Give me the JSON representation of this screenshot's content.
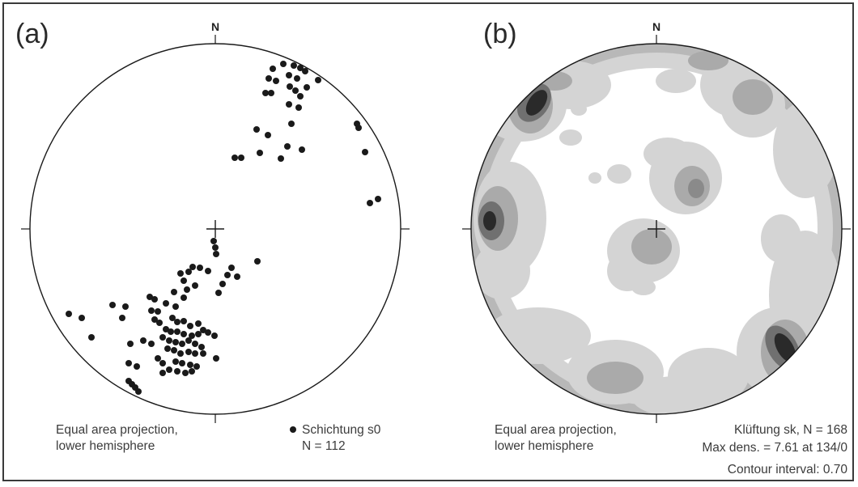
{
  "colors": {
    "ink": "#1a1a1a",
    "frame": "#3a3a3a",
    "contour_light": "#d4d4d4",
    "contour_mid": "#aaaaaa",
    "contour_dark": "#707070",
    "contour_darkest": "#2a2a2a"
  },
  "panel_a": {
    "label": "(a)",
    "north": "N",
    "caption_line1": "Equal area projection,",
    "caption_line2": "lower hemisphere",
    "legend_marker_icon": "filled-dot-icon",
    "legend_line1": "Schichtung s0",
    "legend_line2": "N = 112"
  },
  "panel_b": {
    "label": "(b)",
    "north": "N",
    "caption_line1": "Equal area projection,",
    "caption_line2": "lower hemisphere",
    "stats_line1": "Klüftung sk, N = 168",
    "stats_line2": "Max dens. = 7.61 at 134/0",
    "stats_line3": "Contour interval: 0.70"
  }
}
